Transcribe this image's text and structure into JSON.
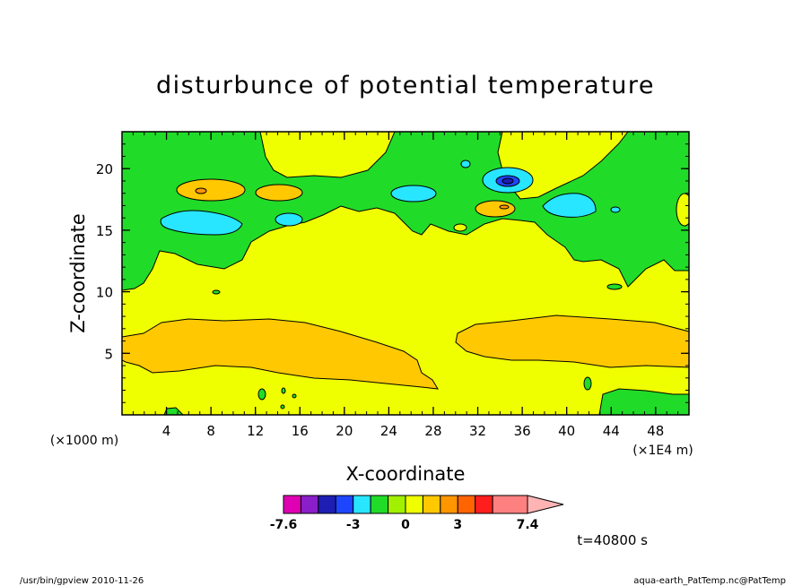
{
  "chart_data": {
    "type": "heatmap",
    "title": "disturbunce of potential temperature",
    "xlabel": "X-coordinate",
    "ylabel": "Z-coordinate",
    "x_unit": "(×1E4 m)",
    "y_unit": "(×1000 m)",
    "xlim": [
      0,
      51
    ],
    "ylim": [
      0,
      23
    ],
    "x_ticks": [
      "4",
      "8",
      "12",
      "16",
      "20",
      "24",
      "28",
      "32",
      "36",
      "40",
      "44",
      "48"
    ],
    "x_tick_values": [
      4,
      8,
      12,
      16,
      20,
      24,
      28,
      32,
      36,
      40,
      44,
      48
    ],
    "y_ticks": [
      "5",
      "10",
      "15",
      "20"
    ],
    "y_tick_values": [
      5,
      10,
      15,
      20
    ],
    "colorbar": {
      "levels": [
        -7.6,
        -6.4,
        -5.2,
        -4.0,
        -3.0,
        -2.0,
        -1.0,
        0,
        1.0,
        2.0,
        3.0,
        4.0,
        5.0,
        7.4
      ],
      "colors": [
        "#e000b4",
        "#8a1ec8",
        "#1e1eb4",
        "#1e46ff",
        "#28e6ff",
        "#20dc28",
        "#a0f000",
        "#f0ff00",
        "#ffc800",
        "#ff9600",
        "#ff6400",
        "#ff1e1e",
        "#ff8080",
        "#ffb4b4"
      ],
      "tick_labels": [
        "-7.6",
        "-3",
        "0",
        "3",
        "7.4"
      ],
      "tick_values": [
        -7.6,
        -3,
        0,
        3,
        7.4
      ]
    },
    "regions": [
      {
        "level": "green",
        "desc": "upper band",
        "x": [
          0,
          51
        ],
        "z": [
          13,
          23
        ]
      },
      {
        "level": "orange",
        "desc": "lower warm band west",
        "x": [
          0,
          28
        ],
        "z": [
          2.5,
          7.8
        ]
      },
      {
        "level": "orange",
        "desc": "lower warm band east",
        "x": [
          30,
          51
        ],
        "z": [
          4,
          8
        ]
      },
      {
        "level": "cyan",
        "desc": "cold patches",
        "x": [
          5,
          43
        ],
        "z": [
          15,
          20
        ]
      }
    ],
    "annotation": "t=40800 s"
  },
  "footer": {
    "left": "/usr/bin/gpview   2010-11-26",
    "right": "aqua-earth_PatTemp.nc@PatTemp"
  }
}
